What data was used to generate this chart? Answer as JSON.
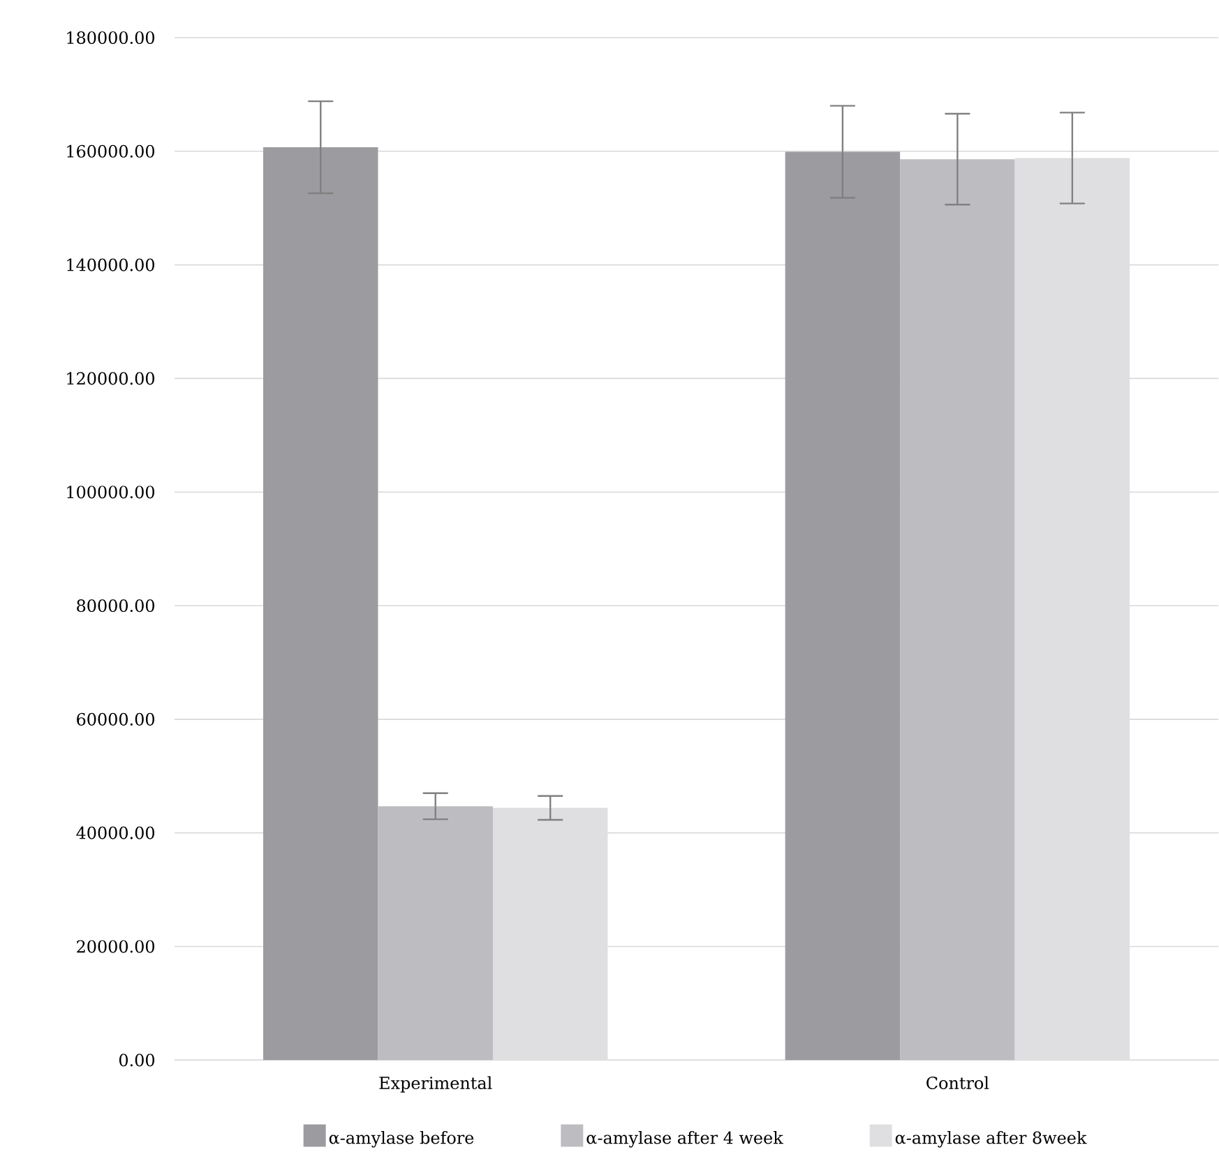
{
  "chart_data": {
    "type": "bar",
    "categories": [
      "Experimental",
      "Control"
    ],
    "series": [
      {
        "name": "α-amylase before",
        "color": "#9c9ca0",
        "values": [
          160700,
          159900
        ],
        "errors": [
          8100,
          8100
        ]
      },
      {
        "name": "α-amylase after 4 week",
        "color": "#bdbdc1",
        "values": [
          44700,
          158600
        ],
        "errors": [
          2300,
          8000
        ]
      },
      {
        "name": "α-amylase after 8week",
        "color": "#dfdfe1",
        "values": [
          44400,
          158800
        ],
        "errors": [
          2100,
          8000
        ]
      }
    ],
    "ylim": [
      0,
      180000
    ],
    "yticks": [
      {
        "value": 0,
        "label": "0.00"
      },
      {
        "value": 20000,
        "label": "20000.00"
      },
      {
        "value": 40000,
        "label": "40000.00"
      },
      {
        "value": 60000,
        "label": "60000.00"
      },
      {
        "value": 80000,
        "label": "80000.00"
      },
      {
        "value": 100000,
        "label": "100000.00"
      },
      {
        "value": 120000,
        "label": "120000.00"
      },
      {
        "value": 140000,
        "label": "140000.00"
      },
      {
        "value": 160000,
        "label": "160000.00"
      },
      {
        "value": 180000,
        "label": "180000.00"
      }
    ],
    "grid": "y",
    "legend": "bottom"
  }
}
